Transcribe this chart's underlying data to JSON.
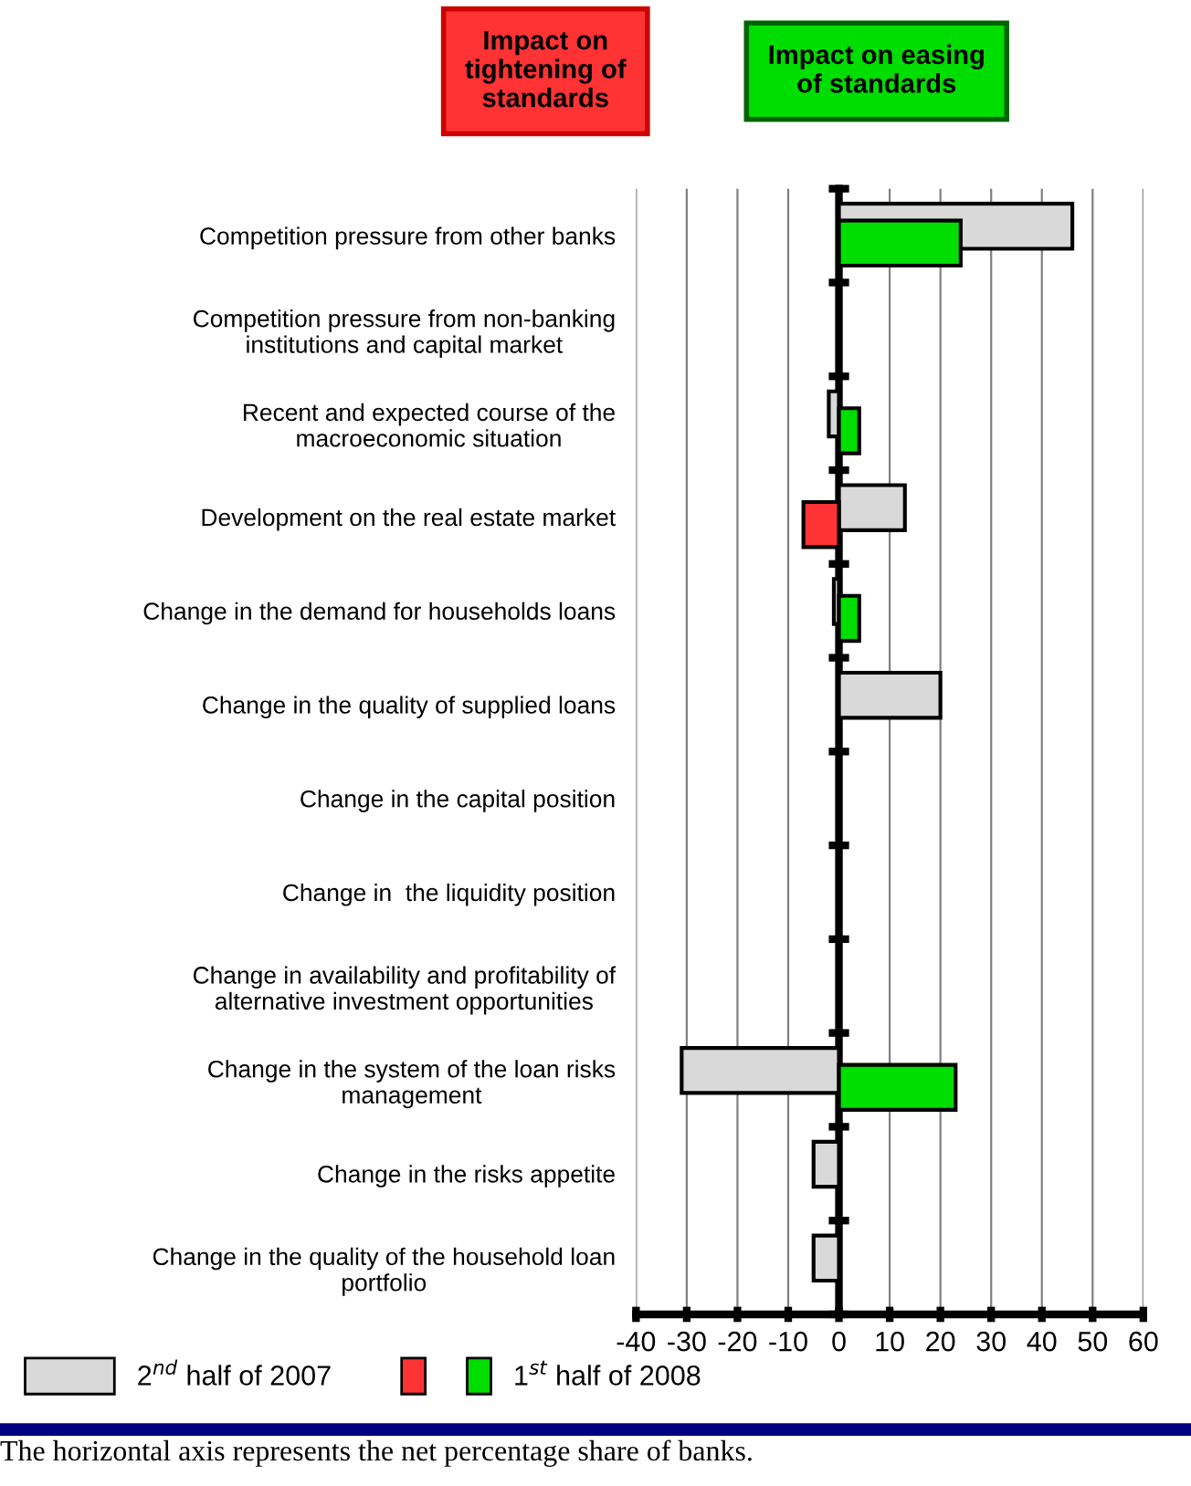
{
  "chart_data": {
    "type": "bar",
    "orientation": "horizontal",
    "categories": [
      "Competition pressure from other banks",
      "Competition pressure from non-banking\ninstitutions and capital market",
      "Recent and expected course of the\nmacroeconomic situation",
      "Development on the real estate market",
      "Change in the demand for households loans",
      "Change in the quality of supplied loans",
      "Change in the capital position",
      "Change in  the liquidity position",
      "Change in availability and profitability of\nalternative investment opportunities",
      "Change in the system of the loan risks\nmanagement",
      "Change in the risks appetite",
      "Change in the quality of the household loan\nportfolio"
    ],
    "series": [
      {
        "name": "2$^{nd}$ half of 2007",
        "color": "#d9d9d9",
        "values": [
          46,
          null,
          -2,
          13,
          -1,
          20,
          null,
          null,
          null,
          -31,
          -5,
          -5
        ]
      },
      {
        "name": "1$^{st}$ half of 2008",
        "colors": [
          "#00dd00",
          null,
          "#00dd00",
          "#ff3333",
          "#00dd00",
          null,
          null,
          null,
          null,
          "#00dd00",
          null,
          null
        ],
        "values": [
          24,
          null,
          4,
          -7,
          4,
          null,
          null,
          null,
          null,
          23,
          null,
          null
        ]
      }
    ],
    "xlim": [
      -40,
      60
    ],
    "xticks": [
      -40,
      -30,
      -20,
      -10,
      0,
      10,
      20,
      30,
      40,
      50,
      60
    ],
    "grid": "x",
    "legend": "bottom left",
    "annotations": [
      "Impact on\ntightening of\nstandards",
      "Impact on easing\nof standards",
      "The horizontal axis represents the net percentage share of banks."
    ]
  }
}
